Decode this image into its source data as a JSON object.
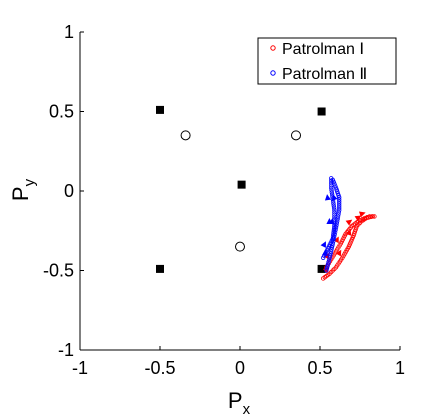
{
  "chart_data": {
    "type": "scatter",
    "title": "",
    "xlabel": {
      "main": "P",
      "sub": "x"
    },
    "ylabel": {
      "main": "P",
      "sub": "y"
    },
    "xlim": [
      -1,
      1
    ],
    "ylim": [
      -1,
      1
    ],
    "xticks": [
      "-1",
      "-0.5",
      "0",
      "0.5",
      "1"
    ],
    "yticks": [
      "-1",
      "-0.5",
      "0",
      "0.5",
      "1"
    ],
    "grid": false,
    "legend_position": "top-right",
    "squares": [
      [
        -0.5,
        0.51
      ],
      [
        0.51,
        0.5
      ],
      [
        0.01,
        0.04
      ],
      [
        -0.5,
        -0.49
      ],
      [
        0.51,
        -0.49
      ]
    ],
    "circles": [
      [
        -0.34,
        0.35
      ],
      [
        0.35,
        0.35
      ],
      [
        0.0,
        -0.35
      ]
    ],
    "series": [
      {
        "name": "Patrolman Ⅰ",
        "color": "#ff0000",
        "marker": "open-circle",
        "values": [
          [
            0.52,
            -0.55
          ],
          [
            0.56,
            -0.52
          ],
          [
            0.6,
            -0.48
          ],
          [
            0.64,
            -0.42
          ],
          [
            0.68,
            -0.35
          ],
          [
            0.71,
            -0.28
          ],
          [
            0.73,
            -0.22
          ],
          [
            0.76,
            -0.19
          ],
          [
            0.79,
            -0.17
          ],
          [
            0.83,
            -0.16
          ]
        ]
      },
      {
        "name": "Patrolman Ⅰ",
        "color": "#ff0000",
        "marker": "open-circle",
        "values": [
          [
            0.54,
            -0.48
          ],
          [
            0.57,
            -0.43
          ],
          [
            0.6,
            -0.38
          ],
          [
            0.63,
            -0.33
          ],
          [
            0.66,
            -0.27
          ],
          [
            0.7,
            -0.22
          ],
          [
            0.74,
            -0.19
          ],
          [
            0.78,
            -0.17
          ],
          [
            0.81,
            -0.16
          ],
          [
            0.84,
            -0.16
          ]
        ]
      },
      {
        "name": "Patrolman Ⅱ",
        "color": "#0000ff",
        "marker": "open-circle",
        "values": [
          [
            0.52,
            -0.42
          ],
          [
            0.55,
            -0.36
          ],
          [
            0.58,
            -0.3
          ],
          [
            0.59,
            -0.22
          ],
          [
            0.59,
            -0.12
          ],
          [
            0.58,
            -0.05
          ],
          [
            0.57,
            0.02
          ],
          [
            0.57,
            0.08
          ]
        ]
      },
      {
        "name": "Patrolman Ⅱ",
        "color": "#0000ff",
        "marker": "open-circle",
        "values": [
          [
            0.54,
            -0.5
          ],
          [
            0.56,
            -0.42
          ],
          [
            0.58,
            -0.33
          ],
          [
            0.6,
            -0.23
          ],
          [
            0.62,
            -0.12
          ],
          [
            0.62,
            -0.04
          ],
          [
            0.6,
            0.02
          ],
          [
            0.58,
            0.07
          ]
        ]
      }
    ],
    "legend": [
      {
        "label": "Patrolman Ⅰ",
        "color": "#ff0000"
      },
      {
        "label": "Patrolman Ⅱ",
        "color": "#0000ff"
      }
    ]
  }
}
